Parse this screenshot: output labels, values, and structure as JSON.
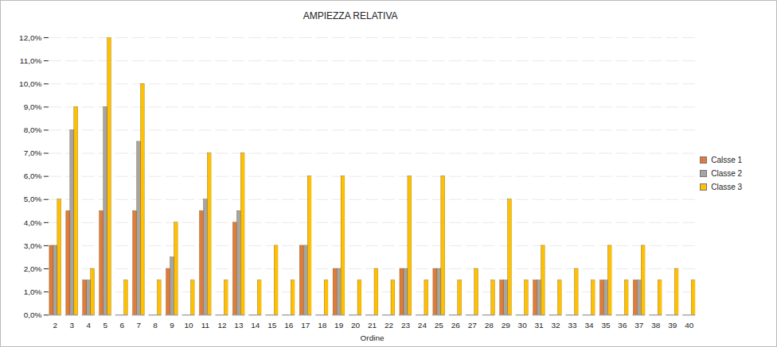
{
  "chart_data": {
    "type": "bar",
    "title": "AMPIEZZA RELATIVA",
    "x_label": "Ordine",
    "categories": [
      2,
      3,
      4,
      5,
      6,
      7,
      8,
      9,
      10,
      11,
      12,
      13,
      14,
      15,
      16,
      17,
      18,
      19,
      20,
      21,
      22,
      23,
      24,
      25,
      26,
      27,
      28,
      29,
      30,
      31,
      32,
      33,
      34,
      35,
      36,
      37,
      38,
      39,
      40
    ],
    "series": [
      {
        "name": "Calsse 1",
        "color": "#E07B39",
        "values": [
          3,
          4.5,
          1.5,
          4.5,
          0,
          4.5,
          0,
          2,
          0,
          4.5,
          0,
          4,
          0,
          0,
          0,
          3,
          0,
          2,
          0,
          0,
          0,
          2,
          0,
          2,
          0,
          0,
          0,
          1.5,
          0,
          1.5,
          0,
          0,
          0,
          1.5,
          0,
          1.5,
          0,
          0,
          0
        ]
      },
      {
        "name": "Classe 2",
        "color": "#A5A5A5",
        "values": [
          3,
          8,
          1.5,
          9,
          0,
          7.5,
          0,
          2.5,
          0,
          5,
          0,
          4.5,
          0,
          0,
          0,
          3,
          0,
          2,
          0,
          0,
          0,
          2,
          0,
          2,
          0,
          0,
          0,
          1.5,
          0,
          1.5,
          0,
          0,
          0,
          1.5,
          0,
          1.5,
          0,
          0,
          0
        ]
      },
      {
        "name": "Classe 3",
        "color": "#FFC000",
        "values": [
          5,
          9,
          2,
          12,
          1.5,
          10,
          1.5,
          4,
          1.5,
          7,
          1.5,
          7,
          1.5,
          3,
          1.5,
          6,
          1.5,
          6,
          1.5,
          2,
          1.5,
          6,
          1.5,
          6,
          1.5,
          2,
          1.5,
          5,
          1.5,
          3,
          1.5,
          2,
          1.5,
          3,
          1.5,
          3,
          1.5,
          2,
          1.5
        ]
      }
    ],
    "ylim": [
      0,
      12
    ],
    "yticks": [
      {
        "value": 0,
        "label": "0,0%"
      },
      {
        "value": 1,
        "label": "1,0%"
      },
      {
        "value": 2,
        "label": "2,0%"
      },
      {
        "value": 3,
        "label": "3,0%"
      },
      {
        "value": 4,
        "label": "4,0%"
      },
      {
        "value": 5,
        "label": "5,0%"
      },
      {
        "value": 6,
        "label": "6,0%"
      },
      {
        "value": 7,
        "label": "7,0%"
      },
      {
        "value": 8,
        "label": "8,0%"
      },
      {
        "value": 9,
        "label": "9,0%"
      },
      {
        "value": 10,
        "label": "10,0%"
      },
      {
        "value": 11,
        "label": "11,0%"
      },
      {
        "value": 12,
        "label": "12,0%"
      }
    ],
    "grid": true,
    "legend": "right"
  }
}
